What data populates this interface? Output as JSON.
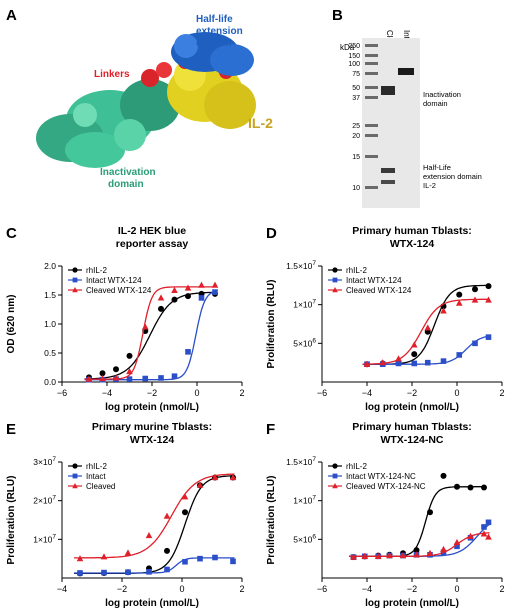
{
  "panelA": {
    "letter": "A",
    "labels": {
      "half_life": [
        "Half-life",
        "extension",
        "domain"
      ],
      "linkers": "Linkers",
      "il2": "IL-2",
      "inactivation": [
        "Inactivation",
        "domain"
      ]
    },
    "colors": {
      "half_life": "#1f5fbf",
      "linkers": "#e0202a",
      "il2": "#c9a21f",
      "inactivation": "#2a9d78"
    }
  },
  "panelB": {
    "letter": "B",
    "kda_label": "kDa",
    "markers": [
      "250",
      "150",
      "100",
      "75",
      "50",
      "37",
      "25",
      "20",
      "15",
      "10"
    ],
    "lanes": [
      "Cleaved",
      "Intact"
    ],
    "annotations": [
      "Inactivation",
      "domain",
      "Half-Life",
      "extension domain",
      "IL-2"
    ]
  },
  "chart_data": [
    {
      "panel": "C",
      "type": "line",
      "title": [
        "IL-2 HEK blue",
        "reporter assay"
      ],
      "xlabel": "log protein (nmol/L)",
      "ylabel": "OD (620 nm)",
      "xlim": [
        -6,
        2
      ],
      "ylim": [
        0,
        2.0
      ],
      "xticks": [
        -6,
        -4,
        -2,
        0,
        2
      ],
      "xticklabels": [
        "−6",
        "−4",
        "−2",
        "0",
        "2"
      ],
      "yticks": [
        0,
        0.5,
        1.0,
        1.5,
        2.0
      ],
      "yticklabels": [
        "0.0",
        "0.5",
        "1.0",
        "1.5",
        "2.0"
      ],
      "legend": "top-left",
      "series": [
        {
          "name": "rhIL-2",
          "color": "#000000",
          "marker": "circle",
          "points": [
            [
              -4.8,
              0.08
            ],
            [
              -4.2,
              0.15
            ],
            [
              -3.6,
              0.22
            ],
            [
              -3.0,
              0.45
            ],
            [
              -2.3,
              0.88
            ],
            [
              -1.6,
              1.26
            ],
            [
              -1.0,
              1.42
            ],
            [
              -0.4,
              1.48
            ],
            [
              0.2,
              1.52
            ],
            [
              0.8,
              1.52
            ]
          ],
          "fit": {
            "bottom": 0.05,
            "top": 1.55,
            "ec50": -2.1,
            "hill": 0.9
          }
        },
        {
          "name": "Intact WTX-124",
          "color": "#2a4fc9",
          "marker": "square",
          "points": [
            [
              -4.8,
              0.04
            ],
            [
              -4.2,
              0.04
            ],
            [
              -3.6,
              0.05
            ],
            [
              -3.0,
              0.05
            ],
            [
              -2.3,
              0.06
            ],
            [
              -1.6,
              0.07
            ],
            [
              -1.0,
              0.1
            ],
            [
              -0.4,
              0.52
            ],
            [
              0.2,
              1.45
            ],
            [
              0.8,
              1.55
            ]
          ],
          "fit": {
            "bottom": 0.04,
            "top": 1.58,
            "ec50": -0.05,
            "hill": 2.2
          }
        },
        {
          "name": "Cleaved WTX-124",
          "color": "#e0202a",
          "marker": "triangle",
          "points": [
            [
              -4.8,
              0.05
            ],
            [
              -4.2,
              0.06
            ],
            [
              -3.6,
              0.07
            ],
            [
              -3.0,
              0.18
            ],
            [
              -2.3,
              0.95
            ],
            [
              -1.6,
              1.45
            ],
            [
              -1.0,
              1.58
            ],
            [
              -0.4,
              1.62
            ],
            [
              0.2,
              1.67
            ],
            [
              0.8,
              1.67
            ]
          ],
          "fit": {
            "bottom": 0.05,
            "top": 1.64,
            "ec50": -2.4,
            "hill": 2.2
          }
        }
      ]
    },
    {
      "panel": "D",
      "type": "line",
      "title": [
        "Primary human Tblasts:",
        "WTX-124"
      ],
      "xlabel": "log protein (nmol/L)",
      "ylabel": "Proliferation (RLU)",
      "xlim": [
        -6,
        2
      ],
      "ylim": [
        0,
        15000000
      ],
      "xticks": [
        -6,
        -4,
        -2,
        0,
        2
      ],
      "xticklabels": [
        "−6",
        "−4",
        "−2",
        "0",
        "2"
      ],
      "yticks": [
        5000000,
        10000000,
        15000000
      ],
      "yticklabels": [
        "5×10^6",
        "1×10^7",
        "1.5×10^7"
      ],
      "legend": "top-left",
      "series": [
        {
          "name": "rhIL-2",
          "color": "#000000",
          "marker": "circle",
          "points": [
            [
              -4.0,
              2300000
            ],
            [
              -3.3,
              2400000
            ],
            [
              -2.6,
              2600000
            ],
            [
              -1.9,
              3600000
            ],
            [
              -1.3,
              6500000
            ],
            [
              -0.6,
              9800000
            ],
            [
              0.1,
              11300000
            ],
            [
              0.8,
              12000000
            ],
            [
              1.4,
              12400000
            ]
          ],
          "fit": {
            "bottom": 2300000,
            "top": 12500000,
            "ec50": -1.0,
            "hill": 1.3
          }
        },
        {
          "name": "Intact WTX-124",
          "color": "#2a4fc9",
          "marker": "square",
          "points": [
            [
              -4.0,
              2300000
            ],
            [
              -3.3,
              2300000
            ],
            [
              -2.6,
              2400000
            ],
            [
              -1.9,
              2400000
            ],
            [
              -1.3,
              2500000
            ],
            [
              -0.6,
              2700000
            ],
            [
              0.1,
              3500000
            ],
            [
              0.8,
              5000000
            ],
            [
              1.4,
              5800000
            ]
          ],
          "fit": {
            "bottom": 2300000,
            "top": 6100000,
            "ec50": 0.4,
            "hill": 1.3
          }
        },
        {
          "name": "Cleaved WTX-124",
          "color": "#e0202a",
          "marker": "triangle",
          "points": [
            [
              -4.0,
              2300000
            ],
            [
              -3.3,
              2500000
            ],
            [
              -2.6,
              3000000
            ],
            [
              -1.9,
              4800000
            ],
            [
              -1.3,
              7000000
            ],
            [
              -0.6,
              9200000
            ],
            [
              0.1,
              10200000
            ],
            [
              0.8,
              10600000
            ],
            [
              1.4,
              10600000
            ]
          ],
          "fit": {
            "bottom": 2300000,
            "top": 10700000,
            "ec50": -1.6,
            "hill": 1.1
          }
        }
      ]
    },
    {
      "panel": "E",
      "type": "line",
      "title": [
        "Primary murine Tblasts:",
        "WTX-124"
      ],
      "xlabel": "log protein (nmol/L)",
      "ylabel": "Proliferation (RLU)",
      "xlim": [
        -4,
        2
      ],
      "ylim": [
        0,
        30000000
      ],
      "xticks": [
        -4,
        -2,
        0,
        2
      ],
      "xticklabels": [
        "−4",
        "−2",
        "0",
        "2"
      ],
      "yticks": [
        10000000,
        20000000,
        30000000
      ],
      "yticklabels": [
        "1×10^7",
        "2×10^7",
        "3×10^7"
      ],
      "legend": "top-left",
      "series": [
        {
          "name": "rhIL-2",
          "color": "#000000",
          "marker": "circle",
          "points": [
            [
              -3.4,
              1200000
            ],
            [
              -2.6,
              1300000
            ],
            [
              -1.8,
              1500000
            ],
            [
              -1.1,
              2500000
            ],
            [
              -0.5,
              7000000
            ],
            [
              0.1,
              17000000
            ],
            [
              0.6,
              24000000
            ],
            [
              1.1,
              26000000
            ],
            [
              1.7,
              26000000
            ]
          ],
          "fit": {
            "bottom": 1200000,
            "top": 26500000,
            "ec50": 0.1,
            "hill": 1.6
          }
        },
        {
          "name": "Intact",
          "color": "#2a4fc9",
          "marker": "square",
          "points": [
            [
              -3.4,
              1300000
            ],
            [
              -2.6,
              1400000
            ],
            [
              -1.8,
              1500000
            ],
            [
              -1.1,
              1600000
            ],
            [
              -0.5,
              2200000
            ],
            [
              0.1,
              4200000
            ],
            [
              0.6,
              5000000
            ],
            [
              1.1,
              5300000
            ],
            [
              1.7,
              4300000
            ]
          ],
          "fit": {
            "bottom": 1300000,
            "top": 5200000,
            "ec50": -0.2,
            "hill": 3.0
          }
        },
        {
          "name": "Cleaved",
          "color": "#e0202a",
          "marker": "triangle",
          "points": [
            [
              -3.4,
              5000000
            ],
            [
              -2.6,
              5500000
            ],
            [
              -1.8,
              6500000
            ],
            [
              -1.1,
              11000000
            ],
            [
              -0.5,
              16000000
            ],
            [
              0.1,
              21000000
            ],
            [
              0.6,
              24000000
            ],
            [
              1.1,
              26000000
            ],
            [
              1.7,
              26000000
            ]
          ],
          "fit": {
            "bottom": 5200000,
            "top": 27000000,
            "ec50": -0.35,
            "hill": 1.1
          }
        }
      ]
    },
    {
      "panel": "F",
      "type": "line",
      "title": [
        "Primary human Tblasts:",
        "WTX-124-NC"
      ],
      "xlabel": "log protein (nmol/L)",
      "ylabel": "Proliferation (RLU)",
      "xlim": [
        -6,
        2
      ],
      "ylim": [
        0,
        15000000
      ],
      "xticks": [
        -6,
        -4,
        -2,
        0,
        2
      ],
      "xticklabels": [
        "−6",
        "−4",
        "−2",
        "0",
        "2"
      ],
      "yticks": [
        5000000,
        10000000,
        15000000
      ],
      "yticklabels": [
        "5×10^6",
        "1×10^7",
        "1.5×10^7"
      ],
      "legend": "top-left",
      "series": [
        {
          "name": "rhIL-2",
          "color": "#000000",
          "marker": "circle",
          "points": [
            [
              -4.6,
              2700000
            ],
            [
              -4.1,
              2800000
            ],
            [
              -3.5,
              2900000
            ],
            [
              -3.0,
              3000000
            ],
            [
              -2.4,
              3200000
            ],
            [
              -1.8,
              3600000
            ],
            [
              -1.2,
              8500000
            ],
            [
              -0.6,
              13200000
            ],
            [
              0.0,
              11800000
            ],
            [
              0.6,
              11700000
            ],
            [
              1.2,
              11700000
            ]
          ],
          "fit": {
            "bottom": 2800000,
            "top": 11800000,
            "ec50": -1.4,
            "hill": 2.0
          }
        },
        {
          "name": "Intact WTX-124-NC",
          "color": "#2a4fc9",
          "marker": "square",
          "points": [
            [
              -4.6,
              2700000
            ],
            [
              -4.1,
              2800000
            ],
            [
              -3.5,
              2800000
            ],
            [
              -3.0,
              2900000
            ],
            [
              -2.4,
              2900000
            ],
            [
              -1.8,
              3000000
            ],
            [
              -1.2,
              3000000
            ],
            [
              -0.6,
              3300000
            ],
            [
              0.0,
              4100000
            ],
            [
              0.6,
              5200000
            ],
            [
              1.2,
              6600000
            ],
            [
              1.4,
              7200000
            ]
          ],
          "fit": {
            "bottom": 2800000,
            "top": 8000000,
            "ec50": 0.9,
            "hill": 1.1
          }
        },
        {
          "name": "Cleaved WTX-124-NC",
          "color": "#e0202a",
          "marker": "triangle",
          "points": [
            [
              -4.6,
              2700000
            ],
            [
              -4.1,
              2800000
            ],
            [
              -3.5,
              2800000
            ],
            [
              -3.0,
              2900000
            ],
            [
              -2.4,
              2900000
            ],
            [
              -1.8,
              3000000
            ],
            [
              -1.2,
              3200000
            ],
            [
              -0.6,
              3700000
            ],
            [
              0.0,
              4600000
            ],
            [
              0.6,
              5400000
            ],
            [
              1.2,
              5700000
            ],
            [
              1.4,
              5300000
            ]
          ],
          "fit": {
            "bottom": 2800000,
            "top": 5900000,
            "ec50": 0.0,
            "hill": 1.2
          }
        }
      ]
    }
  ]
}
